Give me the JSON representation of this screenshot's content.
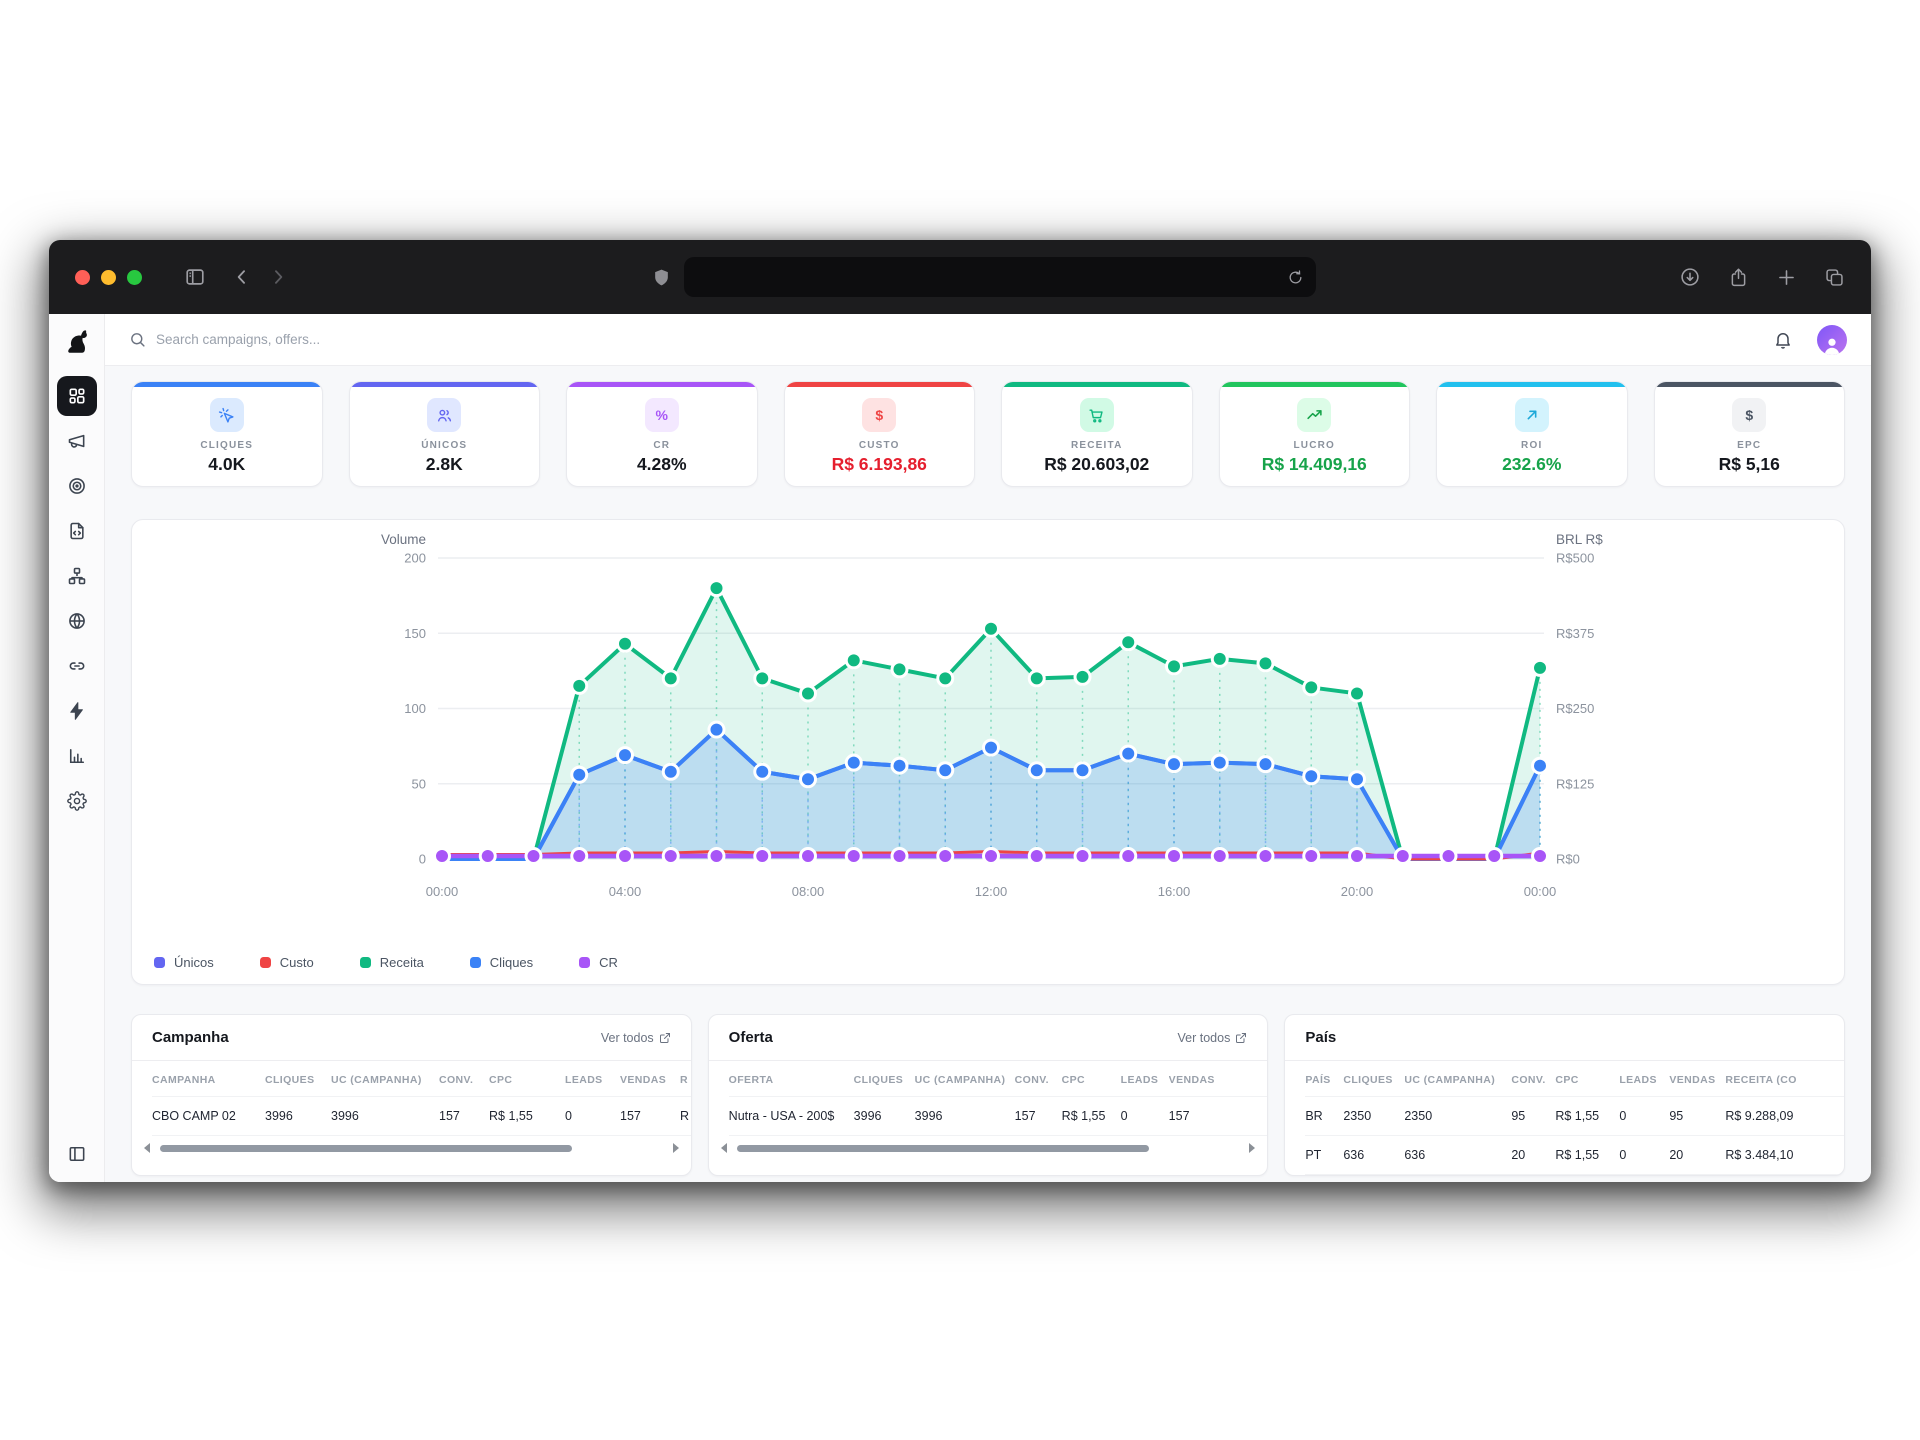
{
  "browser": {
    "url_value": "",
    "traffic_lights": [
      "#ff5f57",
      "#febc2e",
      "#28c840"
    ]
  },
  "topbar": {
    "search_placeholder": "Search campaigns, offers..."
  },
  "sidebar": {
    "icons": [
      "dog-logo",
      "dashboard",
      "megaphone",
      "target",
      "file-code",
      "hierarchy",
      "globe",
      "link",
      "zap",
      "bar-chart",
      "gear",
      "panel-left"
    ]
  },
  "stats": {
    "cards": [
      {
        "label": "CLIQUES",
        "value": "4.0K",
        "accent": "#3b82f6",
        "chip_bg": "#dbeafe",
        "icon_color": "#3b82f6",
        "value_color": "#15181e",
        "icon": "cursor-click"
      },
      {
        "label": "ÚNICOS",
        "value": "2.8K",
        "accent": "#6366f1",
        "chip_bg": "#e0e7ff",
        "icon_color": "#6366f1",
        "value_color": "#15181e",
        "icon": "users"
      },
      {
        "label": "CR",
        "value": "4.28%",
        "accent": "#a855f7",
        "chip_bg": "#f3e8ff",
        "icon_color": "#a855f7",
        "value_color": "#15181e",
        "icon": "percent",
        "glyph": "%"
      },
      {
        "label": "CUSTO",
        "value": "R$ 6.193,86",
        "accent": "#ef4444",
        "chip_bg": "#fee2e2",
        "icon_color": "#ef4444",
        "value_color": "#e51f2e",
        "icon": "dollar",
        "glyph": "$"
      },
      {
        "label": "RECEITA",
        "value": "R$ 20.603,02",
        "accent": "#10b981",
        "chip_bg": "#d1fae5",
        "icon_color": "#10b981",
        "value_color": "#15181e",
        "icon": "cart"
      },
      {
        "label": "LUCRO",
        "value": "R$ 14.409,16",
        "accent": "#22c55e",
        "chip_bg": "#dcfce7",
        "icon_color": "#16a34a",
        "value_color": "#17a34a",
        "icon": "trend-up"
      },
      {
        "label": "ROI",
        "value": "232.6%",
        "accent": "#22c0ee",
        "chip_bg": "#d3f3fd",
        "icon_color": "#1da8d8",
        "value_color": "#17a34a",
        "icon": "arrow-up-right"
      },
      {
        "label": "EPC",
        "value": "R$ 5,16",
        "accent": "#4b5563",
        "chip_bg": "#f1f2f4",
        "icon_color": "#4b5563",
        "value_color": "#15181e",
        "icon": "dollar",
        "glyph": "$"
      }
    ]
  },
  "chart_data": {
    "type": "line",
    "left_axis": "Volume",
    "right_axis": "BRL R$",
    "x": [
      "00:00",
      "01:00",
      "02:00",
      "03:00",
      "04:00",
      "05:00",
      "06:00",
      "07:00",
      "08:00",
      "09:00",
      "10:00",
      "11:00",
      "12:00",
      "13:00",
      "14:00",
      "15:00",
      "16:00",
      "17:00",
      "18:00",
      "19:00",
      "20:00",
      "21:00",
      "22:00",
      "23:00",
      "00:00"
    ],
    "x_tick_every": 4,
    "left_ticks": [
      "0",
      "50",
      "100",
      "150",
      "200"
    ],
    "right_ticks": [
      "R$0",
      "R$125",
      "R$250",
      "R$375",
      "R$500"
    ],
    "ylim": [
      0,
      200
    ],
    "grid": true,
    "series": [
      {
        "name": "Receita",
        "color": "#10b981",
        "fill": "rgba(16,185,129,0.13)",
        "width": 4,
        "droplines": true,
        "dots": "nonzero",
        "values": [
          0,
          0,
          0,
          115,
          143,
          120,
          180,
          120,
          110,
          132,
          126,
          120,
          153,
          120,
          121,
          144,
          128,
          133,
          130,
          114,
          110,
          0,
          0,
          0,
          127
        ]
      },
      {
        "name": "Únicos",
        "color": "#6366f1",
        "width": 4,
        "dots": "none",
        "values": [
          0,
          0,
          0,
          56,
          69,
          58,
          86,
          58,
          53,
          64,
          62,
          59,
          74,
          59,
          59,
          70,
          63,
          64,
          63,
          55,
          53,
          0,
          0,
          0,
          62
        ]
      },
      {
        "name": "Cliques",
        "color": "#3b82f6",
        "fill": "rgba(59,130,246,0.22)",
        "width": 4,
        "droplines": true,
        "dots": "nonzero",
        "values": [
          0,
          0,
          0,
          56,
          69,
          58,
          86,
          58,
          53,
          64,
          62,
          59,
          74,
          59,
          59,
          70,
          63,
          64,
          63,
          55,
          53,
          0,
          0,
          0,
          62
        ]
      },
      {
        "name": "Custo",
        "color": "#ef4444",
        "width": 3,
        "dots": "none",
        "values": [
          3,
          3,
          3,
          4,
          4,
          4,
          5,
          4,
          4,
          4,
          4,
          4,
          5,
          4,
          4,
          4,
          4,
          4,
          4,
          4,
          4,
          0,
          0,
          0,
          4
        ]
      },
      {
        "name": "CR",
        "color": "#a855f7",
        "width": 4.5,
        "dots": "all",
        "values": [
          2,
          2,
          2,
          2,
          2,
          2,
          2,
          2,
          2,
          2,
          2,
          2,
          2,
          2,
          2,
          2,
          2,
          2,
          2,
          2,
          2,
          2,
          2,
          2,
          2
        ]
      }
    ],
    "legend": [
      {
        "label": "Únicos",
        "color": "#6366f1"
      },
      {
        "label": "Custo",
        "color": "#ef4444"
      },
      {
        "label": "Receita",
        "color": "#10b981"
      },
      {
        "label": "Cliques",
        "color": "#3b82f6"
      },
      {
        "label": "CR",
        "color": "#a855f7"
      }
    ]
  },
  "tables": {
    "campanha": {
      "title": "Campanha",
      "link": "Ver todos",
      "headers": [
        "CAMPANHA",
        "CLIQUES",
        "UC (CAMPANHA)",
        "CONV.",
        "CPC",
        "LEADS",
        "VENDAS",
        "R"
      ],
      "rows": [
        [
          "CBO CAMP 02",
          "3996",
          "3996",
          "157",
          "R$ 1,55",
          "0",
          "157",
          "R"
        ]
      ]
    },
    "oferta": {
      "title": "Oferta",
      "link": "Ver todos",
      "headers": [
        "OFERTA",
        "CLIQUES",
        "UC (CAMPANHA)",
        "CONV.",
        "CPC",
        "LEADS",
        "VENDAS"
      ],
      "rows": [
        [
          "Nutra - USA - 200$",
          "3996",
          "3996",
          "157",
          "R$ 1,55",
          "0",
          "157"
        ]
      ]
    },
    "pais": {
      "title": "País",
      "headers": [
        "PAÍS",
        "CLIQUES",
        "UC (CAMPANHA)",
        "CONV.",
        "CPC",
        "LEADS",
        "VENDAS",
        "RECEITA (CO"
      ],
      "rows": [
        [
          "BR",
          "2350",
          "2350",
          "95",
          "R$ 1,55",
          "0",
          "95",
          "R$ 9.288,09"
        ],
        [
          "PT",
          "636",
          "636",
          "20",
          "R$ 1,55",
          "0",
          "20",
          "R$ 3.484,10"
        ]
      ]
    }
  }
}
